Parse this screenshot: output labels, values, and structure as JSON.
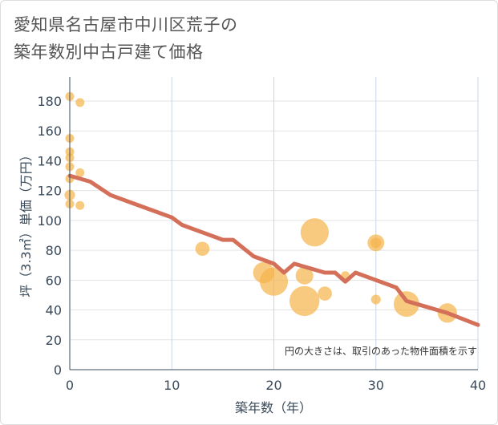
{
  "title": {
    "line1": "愛知県名古屋市中川区荒子の",
    "line2": "築年数別中古戸建て価格"
  },
  "chart_data": {
    "type": "scatter",
    "title": "愛知県名古屋市中川区荒子の築年数別中古戸建て価格",
    "xlabel": "築年数（年）",
    "ylabel": "坪（3.3㎡）単価（万円）",
    "xlim": [
      0,
      40
    ],
    "ylim": [
      0,
      190
    ],
    "x_ticks": [
      0,
      10,
      20,
      30,
      40
    ],
    "y_ticks": [
      0,
      20,
      40,
      60,
      80,
      100,
      120,
      140,
      160,
      180
    ],
    "grid": true,
    "annotation": "円の大きさは、取引のあった物件面積を示す",
    "point_color": "#f5b44a",
    "line_color": "#d4705a",
    "points": [
      {
        "x": 0,
        "y": 183,
        "size": 1
      },
      {
        "x": 1,
        "y": 179,
        "size": 1
      },
      {
        "x": 0,
        "y": 155,
        "size": 1
      },
      {
        "x": 0,
        "y": 146,
        "size": 1
      },
      {
        "x": 0,
        "y": 142,
        "size": 1
      },
      {
        "x": 0,
        "y": 136,
        "size": 1
      },
      {
        "x": 1,
        "y": 132,
        "size": 1
      },
      {
        "x": 0,
        "y": 128,
        "size": 1
      },
      {
        "x": 0,
        "y": 117,
        "size": 1.2
      },
      {
        "x": 0,
        "y": 111,
        "size": 1
      },
      {
        "x": 1,
        "y": 110,
        "size": 1
      },
      {
        "x": 13,
        "y": 81,
        "size": 1.6
      },
      {
        "x": 19,
        "y": 65,
        "size": 2.4
      },
      {
        "x": 20,
        "y": 59,
        "size": 3.2
      },
      {
        "x": 23,
        "y": 63,
        "size": 2.0
      },
      {
        "x": 23,
        "y": 46,
        "size": 3.4
      },
      {
        "x": 24,
        "y": 92,
        "size": 3.2
      },
      {
        "x": 25,
        "y": 51,
        "size": 1.6
      },
      {
        "x": 27,
        "y": 63,
        "size": 1
      },
      {
        "x": 30,
        "y": 85,
        "size": 1.9
      },
      {
        "x": 30,
        "y": 85,
        "size": 1.2
      },
      {
        "x": 30,
        "y": 47,
        "size": 1.1
      },
      {
        "x": 33,
        "y": 44,
        "size": 2.9
      },
      {
        "x": 37,
        "y": 38,
        "size": 2.2
      }
    ],
    "trend": {
      "x": [
        0,
        2,
        4,
        6,
        8,
        10,
        11,
        13,
        15,
        16,
        18,
        20,
        21,
        22,
        23,
        25,
        26,
        27,
        28,
        30,
        32,
        33,
        35,
        37,
        40
      ],
      "y": [
        130,
        126,
        117,
        112,
        107,
        102,
        97,
        92,
        87,
        87,
        76,
        71,
        65,
        71,
        69,
        65,
        65,
        59,
        65,
        60,
        55,
        46,
        42,
        38,
        30
      ]
    }
  }
}
